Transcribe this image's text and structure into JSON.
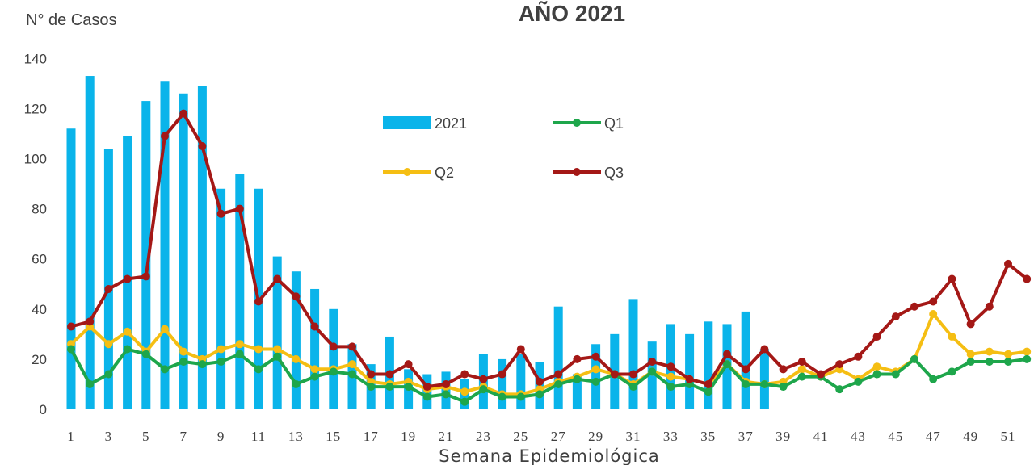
{
  "chart_data": {
    "type": "bar+line",
    "title": "AÑO 2021",
    "ylabel": "N° de Casos",
    "xlabel": "Semana Epidemiológica",
    "ylim": [
      0,
      140
    ],
    "yticks": [
      0,
      20,
      40,
      60,
      80,
      100,
      120,
      140
    ],
    "xtick_labels": [
      "1",
      "3",
      "5",
      "7",
      "9",
      "11",
      "13",
      "15",
      "17",
      "19",
      "21",
      "23",
      "25",
      "27",
      "29",
      "31",
      "33",
      "35",
      "37",
      "39",
      "41",
      "43",
      "45",
      "47",
      "49",
      "51"
    ],
    "weeks": [
      1,
      2,
      3,
      4,
      5,
      6,
      7,
      8,
      9,
      10,
      11,
      12,
      13,
      14,
      15,
      16,
      17,
      18,
      19,
      20,
      21,
      22,
      23,
      24,
      25,
      26,
      27,
      28,
      29,
      30,
      31,
      32,
      33,
      34,
      35,
      36,
      37,
      38,
      39,
      40,
      41,
      42,
      43,
      44,
      45,
      46,
      47,
      48,
      49,
      50,
      51,
      52
    ],
    "legend_position": "upper-center",
    "series": [
      {
        "name": "2021",
        "kind": "bar",
        "color": "#0ab4ea",
        "values": [
          112,
          133,
          104,
          109,
          123,
          131,
          126,
          129,
          88,
          94,
          88,
          61,
          55,
          48,
          40,
          26,
          18,
          29,
          16,
          14,
          15,
          12,
          22,
          20,
          22,
          19,
          41,
          14,
          26,
          30,
          44,
          27,
          34,
          30,
          35,
          34,
          39,
          24
        ]
      },
      {
        "name": "Q1",
        "kind": "line",
        "color": "#1ea64b",
        "values": [
          24,
          10,
          14,
          24,
          22,
          16,
          19,
          18,
          19,
          22,
          16,
          21,
          10,
          13,
          15,
          14,
          9,
          9,
          9,
          5,
          6,
          3,
          8,
          5,
          5,
          6,
          10,
          12,
          11,
          14,
          9,
          15,
          9,
          10,
          7,
          18,
          10,
          10,
          9,
          13,
          13,
          8,
          11,
          14,
          14,
          20,
          12,
          15,
          19,
          19,
          19,
          20
        ]
      },
      {
        "name": "Q2",
        "kind": "line",
        "color": "#f5be13",
        "values": [
          26,
          33,
          26,
          31,
          23,
          32,
          23,
          20,
          24,
          26,
          24,
          24,
          20,
          16,
          16,
          18,
          11,
          10,
          11,
          8,
          9,
          7,
          9,
          6,
          6,
          8,
          11,
          13,
          16,
          14,
          10,
          15,
          13,
          12,
          10,
          18,
          11,
          10,
          11,
          16,
          13,
          16,
          12,
          17,
          15,
          20,
          38,
          29,
          22,
          23,
          22,
          23
        ]
      },
      {
        "name": "Q3",
        "kind": "line",
        "color": "#a41816",
        "values": [
          33,
          35,
          48,
          52,
          53,
          109,
          118,
          105,
          78,
          80,
          43,
          52,
          45,
          33,
          25,
          25,
          14,
          14,
          18,
          9,
          10,
          14,
          12,
          14,
          24,
          11,
          14,
          20,
          21,
          14,
          14,
          19,
          17,
          12,
          10,
          22,
          16,
          24,
          16,
          19,
          14,
          18,
          21,
          29,
          37,
          41,
          43,
          52,
          34,
          41,
          58,
          52
        ]
      }
    ]
  }
}
